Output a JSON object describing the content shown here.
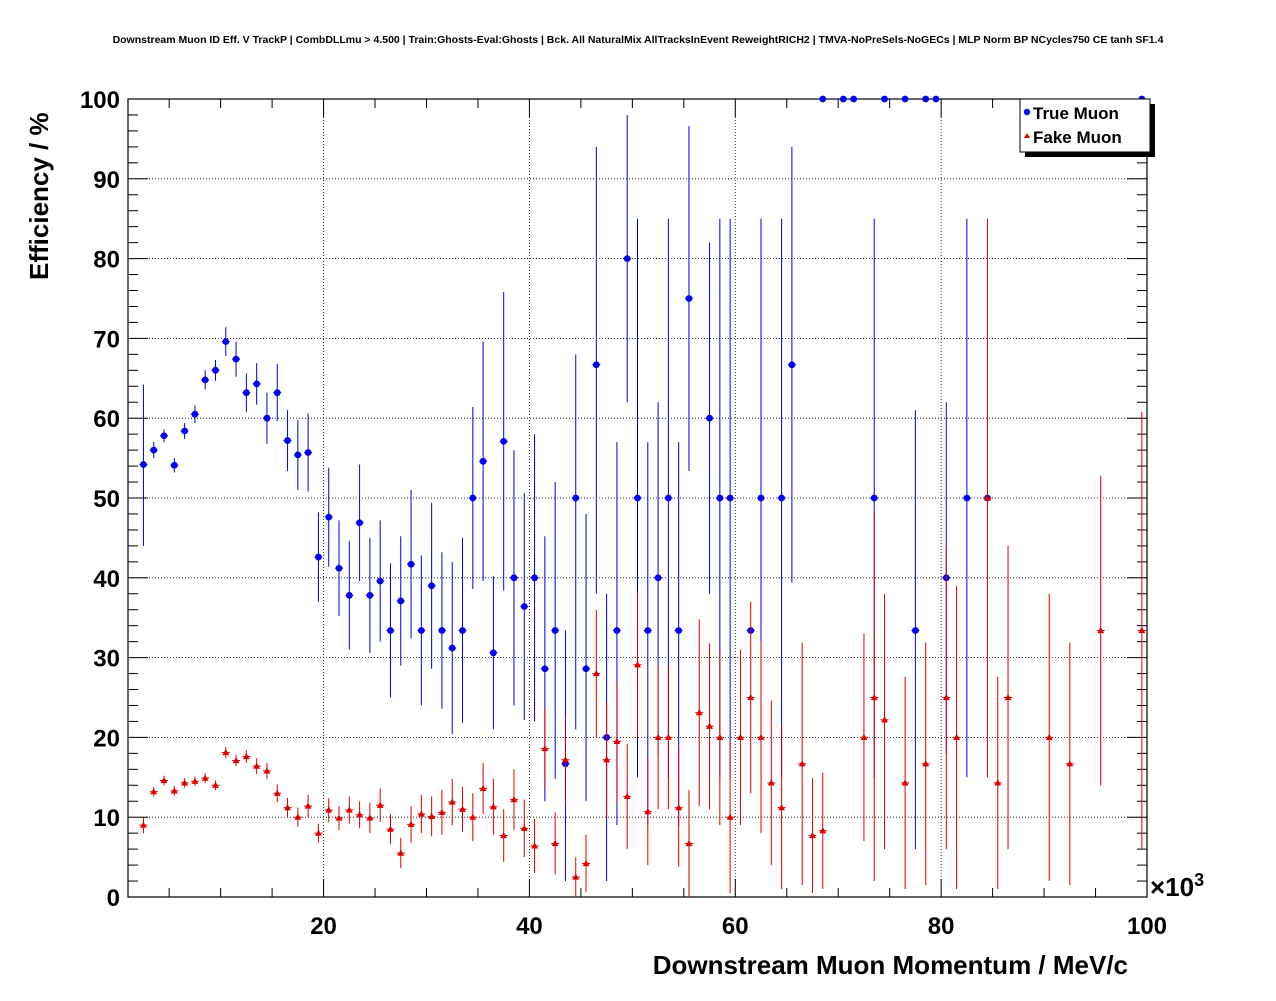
{
  "chart_data": {
    "type": "scatter",
    "title": "Downstream Muon ID Eff. V TrackP | CombDLLmu > 4.500 | Train:Ghosts-Eval:Ghosts | Bck. All NaturalMix AllTracksInEvent ReweightRICH2 | TMVA-NoPreSels-NoGECs | MLP Norm BP NCycles750 CE tanh SF1.4",
    "xlabel": "Downstream Muon Momentum / MeV/c",
    "ylabel": "Efficiency / %",
    "x_multiplier": "×10",
    "x_multiplier_exp": "3",
    "xlim": [
      1,
      100
    ],
    "ylim": [
      0,
      100
    ],
    "x_ticks": [
      20,
      40,
      60,
      80,
      100
    ],
    "y_ticks": [
      0,
      10,
      20,
      30,
      40,
      50,
      60,
      70,
      80,
      90,
      100
    ],
    "grid": true,
    "legend_position": "top-right",
    "series": [
      {
        "name": "True Muon",
        "color": "#0000ee",
        "marker": "circle",
        "points": [
          {
            "x": 2.5,
            "y": 54.2,
            "lo": 44.0,
            "hi": 64.2
          },
          {
            "x": 3.5,
            "y": 56.0,
            "lo": 55.0,
            "hi": 57.0
          },
          {
            "x": 4.5,
            "y": 57.8,
            "lo": 57.0,
            "hi": 58.6
          },
          {
            "x": 5.5,
            "y": 54.1,
            "lo": 53.2,
            "hi": 55.0
          },
          {
            "x": 6.5,
            "y": 58.4,
            "lo": 57.4,
            "hi": 59.4
          },
          {
            "x": 7.5,
            "y": 60.5,
            "lo": 59.4,
            "hi": 61.6
          },
          {
            "x": 8.5,
            "y": 64.8,
            "lo": 63.6,
            "hi": 66.0
          },
          {
            "x": 9.5,
            "y": 66.0,
            "lo": 64.7,
            "hi": 67.3
          },
          {
            "x": 10.5,
            "y": 69.6,
            "lo": 67.8,
            "hi": 71.4
          },
          {
            "x": 11.5,
            "y": 67.4,
            "lo": 65.2,
            "hi": 69.6
          },
          {
            "x": 12.5,
            "y": 63.2,
            "lo": 60.8,
            "hi": 65.6
          },
          {
            "x": 13.5,
            "y": 64.3,
            "lo": 61.7,
            "hi": 66.9
          },
          {
            "x": 14.5,
            "y": 60.0,
            "lo": 56.8,
            "hi": 63.2
          },
          {
            "x": 15.5,
            "y": 63.2,
            "lo": 59.6,
            "hi": 66.8
          },
          {
            "x": 16.5,
            "y": 57.2,
            "lo": 53.4,
            "hi": 61.0
          },
          {
            "x": 17.5,
            "y": 55.4,
            "lo": 51.0,
            "hi": 59.8
          },
          {
            "x": 18.5,
            "y": 55.7,
            "lo": 50.8,
            "hi": 60.6
          },
          {
            "x": 19.5,
            "y": 42.6,
            "lo": 37.0,
            "hi": 48.2
          },
          {
            "x": 20.5,
            "y": 47.6,
            "lo": 41.4,
            "hi": 53.8
          },
          {
            "x": 21.5,
            "y": 41.2,
            "lo": 35.2,
            "hi": 47.2
          },
          {
            "x": 22.5,
            "y": 37.8,
            "lo": 31.0,
            "hi": 44.6
          },
          {
            "x": 23.5,
            "y": 46.9,
            "lo": 39.6,
            "hi": 54.2
          },
          {
            "x": 24.5,
            "y": 37.8,
            "lo": 30.6,
            "hi": 45.0
          },
          {
            "x": 25.5,
            "y": 39.6,
            "lo": 32.0,
            "hi": 47.2
          },
          {
            "x": 26.5,
            "y": 33.4,
            "lo": 25.0,
            "hi": 41.8
          },
          {
            "x": 27.5,
            "y": 37.1,
            "lo": 29.0,
            "hi": 45.2
          },
          {
            "x": 28.5,
            "y": 41.7,
            "lo": 32.4,
            "hi": 51.0
          },
          {
            "x": 29.5,
            "y": 33.4,
            "lo": 24.0,
            "hi": 42.8
          },
          {
            "x": 30.5,
            "y": 39.0,
            "lo": 28.6,
            "hi": 49.4
          },
          {
            "x": 31.5,
            "y": 33.4,
            "lo": 23.6,
            "hi": 43.2
          },
          {
            "x": 32.5,
            "y": 31.2,
            "lo": 20.4,
            "hi": 42.0
          },
          {
            "x": 33.5,
            "y": 33.4,
            "lo": 21.8,
            "hi": 45.0
          },
          {
            "x": 34.5,
            "y": 50.0,
            "lo": 38.6,
            "hi": 61.4
          },
          {
            "x": 35.5,
            "y": 54.6,
            "lo": 39.6,
            "hi": 69.6
          },
          {
            "x": 36.5,
            "y": 30.6,
            "lo": 21.0,
            "hi": 40.2
          },
          {
            "x": 37.5,
            "y": 57.1,
            "lo": 38.4,
            "hi": 75.8
          },
          {
            "x": 38.5,
            "y": 40.0,
            "lo": 24.0,
            "hi": 56.0
          },
          {
            "x": 39.5,
            "y": 36.4,
            "lo": 22.2,
            "hi": 50.6
          },
          {
            "x": 40.5,
            "y": 40.0,
            "lo": 22.0,
            "hi": 58.0
          },
          {
            "x": 41.5,
            "y": 28.6,
            "lo": 12.0,
            "hi": 45.2
          },
          {
            "x": 42.5,
            "y": 33.4,
            "lo": 14.8,
            "hi": 52.0
          },
          {
            "x": 43.5,
            "y": 16.7,
            "lo": 2.0,
            "hi": 33.4
          },
          {
            "x": 44.5,
            "y": 50.0,
            "lo": 21.0,
            "hi": 68.0
          },
          {
            "x": 45.5,
            "y": 28.6,
            "lo": 12.0,
            "hi": 48.0
          },
          {
            "x": 46.5,
            "y": 66.7,
            "lo": 38.0,
            "hi": 94.0
          },
          {
            "x": 47.5,
            "y": 20.0,
            "lo": 2.0,
            "hi": 38.0
          },
          {
            "x": 48.5,
            "y": 33.4,
            "lo": 9.0,
            "hi": 57.0
          },
          {
            "x": 49.5,
            "y": 80.0,
            "lo": 62.0,
            "hi": 98.0
          },
          {
            "x": 50.5,
            "y": 50.0,
            "lo": 15.0,
            "hi": 85.0
          },
          {
            "x": 51.5,
            "y": 33.4,
            "lo": 9.0,
            "hi": 57.0
          },
          {
            "x": 52.5,
            "y": 40.0,
            "lo": 18.0,
            "hi": 62.0
          },
          {
            "x": 53.5,
            "y": 50.0,
            "lo": 15.0,
            "hi": 85.0
          },
          {
            "x": 54.5,
            "y": 33.4,
            "lo": 9.0,
            "hi": 57.0
          },
          {
            "x": 55.5,
            "y": 75.0,
            "lo": 53.4,
            "hi": 96.6
          },
          {
            "x": 57.5,
            "y": 60.0,
            "lo": 38.0,
            "hi": 82.0
          },
          {
            "x": 58.5,
            "y": 50.0,
            "lo": 15.0,
            "hi": 85.0
          },
          {
            "x": 59.5,
            "y": 50.0,
            "lo": 15.0,
            "hi": 85.0
          },
          {
            "x": 61.5,
            "y": 33.4,
            "lo": 33.4,
            "hi": 33.4
          },
          {
            "x": 62.5,
            "y": 50.0,
            "lo": 15.0,
            "hi": 85.0
          },
          {
            "x": 64.5,
            "y": 50.0,
            "lo": 15.0,
            "hi": 85.0
          },
          {
            "x": 65.5,
            "y": 66.7,
            "lo": 39.4,
            "hi": 94.0
          },
          {
            "x": 68.5,
            "y": 100.0,
            "lo": 100.0,
            "hi": 100.0
          },
          {
            "x": 70.5,
            "y": 100.0,
            "lo": 100.0,
            "hi": 100.0
          },
          {
            "x": 71.5,
            "y": 100.0,
            "lo": 100.0,
            "hi": 100.0
          },
          {
            "x": 73.5,
            "y": 50.0,
            "lo": 15.0,
            "hi": 85.0
          },
          {
            "x": 74.5,
            "y": 100.0,
            "lo": 100.0,
            "hi": 100.0
          },
          {
            "x": 76.5,
            "y": 100.0,
            "lo": 100.0,
            "hi": 100.0
          },
          {
            "x": 77.5,
            "y": 33.4,
            "lo": 6.0,
            "hi": 61.0
          },
          {
            "x": 78.5,
            "y": 100.0,
            "lo": 100.0,
            "hi": 100.0
          },
          {
            "x": 79.5,
            "y": 100.0,
            "lo": 100.0,
            "hi": 100.0
          },
          {
            "x": 80.5,
            "y": 40.0,
            "lo": 18.0,
            "hi": 62.0
          },
          {
            "x": 82.5,
            "y": 50.0,
            "lo": 15.0,
            "hi": 85.0
          },
          {
            "x": 84.5,
            "y": 50.0,
            "lo": 50.0,
            "hi": 50.0
          },
          {
            "x": 99.5,
            "y": 100.0,
            "lo": 100.0,
            "hi": 100.0
          }
        ]
      },
      {
        "name": "Fake Muon",
        "color": "#dd0000",
        "marker": "triangle",
        "points": [
          {
            "x": 2.5,
            "y": 9.0,
            "lo": 8.0,
            "hi": 10.0
          },
          {
            "x": 3.5,
            "y": 13.2,
            "lo": 12.6,
            "hi": 13.8
          },
          {
            "x": 4.5,
            "y": 14.6,
            "lo": 14.0,
            "hi": 15.2
          },
          {
            "x": 5.5,
            "y": 13.3,
            "lo": 12.7,
            "hi": 13.9
          },
          {
            "x": 6.5,
            "y": 14.3,
            "lo": 13.7,
            "hi": 14.9
          },
          {
            "x": 7.5,
            "y": 14.5,
            "lo": 13.9,
            "hi": 15.1
          },
          {
            "x": 8.5,
            "y": 14.9,
            "lo": 14.3,
            "hi": 15.5
          },
          {
            "x": 9.5,
            "y": 14.0,
            "lo": 13.4,
            "hi": 14.6
          },
          {
            "x": 10.5,
            "y": 18.1,
            "lo": 17.4,
            "hi": 18.8
          },
          {
            "x": 11.5,
            "y": 17.1,
            "lo": 16.4,
            "hi": 17.8
          },
          {
            "x": 12.5,
            "y": 17.6,
            "lo": 16.8,
            "hi": 18.4
          },
          {
            "x": 13.5,
            "y": 16.4,
            "lo": 15.4,
            "hi": 17.4
          },
          {
            "x": 14.5,
            "y": 15.8,
            "lo": 14.8,
            "hi": 16.8
          },
          {
            "x": 15.5,
            "y": 13.0,
            "lo": 11.9,
            "hi": 14.1
          },
          {
            "x": 16.5,
            "y": 11.2,
            "lo": 10.0,
            "hi": 12.4
          },
          {
            "x": 17.5,
            "y": 10.0,
            "lo": 8.8,
            "hi": 11.2
          },
          {
            "x": 18.5,
            "y": 11.4,
            "lo": 10.0,
            "hi": 12.8
          },
          {
            "x": 19.5,
            "y": 8.0,
            "lo": 6.8,
            "hi": 9.2
          },
          {
            "x": 20.5,
            "y": 10.9,
            "lo": 9.4,
            "hi": 12.4
          },
          {
            "x": 21.5,
            "y": 9.9,
            "lo": 8.4,
            "hi": 11.4
          },
          {
            "x": 22.5,
            "y": 10.9,
            "lo": 9.2,
            "hi": 12.6
          },
          {
            "x": 23.5,
            "y": 10.3,
            "lo": 8.6,
            "hi": 12.0
          },
          {
            "x": 24.5,
            "y": 9.9,
            "lo": 8.0,
            "hi": 11.8
          },
          {
            "x": 25.5,
            "y": 11.5,
            "lo": 9.4,
            "hi": 13.6
          },
          {
            "x": 26.5,
            "y": 8.5,
            "lo": 6.6,
            "hi": 10.4
          },
          {
            "x": 27.5,
            "y": 5.5,
            "lo": 3.6,
            "hi": 7.4
          },
          {
            "x": 28.5,
            "y": 9.1,
            "lo": 6.8,
            "hi": 11.4
          },
          {
            "x": 29.5,
            "y": 10.4,
            "lo": 8.0,
            "hi": 12.8
          },
          {
            "x": 30.5,
            "y": 10.1,
            "lo": 7.6,
            "hi": 12.6
          },
          {
            "x": 31.5,
            "y": 10.6,
            "lo": 7.8,
            "hi": 13.4
          },
          {
            "x": 32.5,
            "y": 11.9,
            "lo": 9.0,
            "hi": 14.8
          },
          {
            "x": 33.5,
            "y": 11.0,
            "lo": 8.2,
            "hi": 13.8
          },
          {
            "x": 34.5,
            "y": 10.0,
            "lo": 7.0,
            "hi": 13.0
          },
          {
            "x": 35.5,
            "y": 13.6,
            "lo": 10.4,
            "hi": 16.8
          },
          {
            "x": 36.5,
            "y": 11.3,
            "lo": 7.8,
            "hi": 14.8
          },
          {
            "x": 37.5,
            "y": 7.7,
            "lo": 4.4,
            "hi": 11.0
          },
          {
            "x": 38.5,
            "y": 12.2,
            "lo": 8.4,
            "hi": 16.0
          },
          {
            "x": 39.5,
            "y": 8.6,
            "lo": 5.0,
            "hi": 12.2
          },
          {
            "x": 40.5,
            "y": 6.4,
            "lo": 3.0,
            "hi": 9.8
          },
          {
            "x": 41.5,
            "y": 18.6,
            "lo": 13.6,
            "hi": 23.6
          },
          {
            "x": 42.5,
            "y": 6.7,
            "lo": 2.8,
            "hi": 10.6
          },
          {
            "x": 43.5,
            "y": 17.2,
            "lo": 11.8,
            "hi": 22.6
          },
          {
            "x": 44.5,
            "y": 2.5,
            "lo": 0.0,
            "hi": 5.0
          },
          {
            "x": 45.5,
            "y": 4.2,
            "lo": 0.6,
            "hi": 7.8
          },
          {
            "x": 46.5,
            "y": 28.0,
            "lo": 20.0,
            "hi": 36.0
          },
          {
            "x": 47.5,
            "y": 17.2,
            "lo": 10.0,
            "hi": 24.4
          },
          {
            "x": 48.5,
            "y": 19.5,
            "lo": 12.0,
            "hi": 27.0
          },
          {
            "x": 49.5,
            "y": 12.6,
            "lo": 6.0,
            "hi": 19.2
          },
          {
            "x": 50.5,
            "y": 29.1,
            "lo": 20.0,
            "hi": 38.2
          },
          {
            "x": 51.5,
            "y": 10.7,
            "lo": 4.0,
            "hi": 17.4
          },
          {
            "x": 52.5,
            "y": 20.0,
            "lo": 11.0,
            "hi": 29.0
          },
          {
            "x": 53.5,
            "y": 20.0,
            "lo": 11.0,
            "hi": 29.0
          },
          {
            "x": 54.5,
            "y": 11.2,
            "lo": 3.8,
            "hi": 18.6
          },
          {
            "x": 55.5,
            "y": 6.7,
            "lo": 0.0,
            "hi": 13.4
          },
          {
            "x": 56.5,
            "y": 23.1,
            "lo": 11.4,
            "hi": 34.8
          },
          {
            "x": 57.5,
            "y": 21.4,
            "lo": 11.0,
            "hi": 31.8
          },
          {
            "x": 58.5,
            "y": 20.0,
            "lo": 9.0,
            "hi": 31.0
          },
          {
            "x": 59.5,
            "y": 10.0,
            "lo": 0.5,
            "hi": 19.5
          },
          {
            "x": 60.5,
            "y": 20.0,
            "lo": 9.0,
            "hi": 31.0
          },
          {
            "x": 61.5,
            "y": 25.0,
            "lo": 13.0,
            "hi": 37.0
          },
          {
            "x": 62.5,
            "y": 20.0,
            "lo": 8.0,
            "hi": 32.0
          },
          {
            "x": 63.5,
            "y": 14.3,
            "lo": 4.0,
            "hi": 24.6
          },
          {
            "x": 64.5,
            "y": 11.2,
            "lo": 1.0,
            "hi": 21.4
          },
          {
            "x": 66.5,
            "y": 16.7,
            "lo": 1.5,
            "hi": 31.9
          },
          {
            "x": 67.5,
            "y": 7.7,
            "lo": 0.5,
            "hi": 14.9
          },
          {
            "x": 68.5,
            "y": 8.3,
            "lo": 1.0,
            "hi": 15.6
          },
          {
            "x": 72.5,
            "y": 20.0,
            "lo": 7.0,
            "hi": 33.0
          },
          {
            "x": 73.5,
            "y": 25.0,
            "lo": 2.0,
            "hi": 48.0
          },
          {
            "x": 74.5,
            "y": 22.2,
            "lo": 6.0,
            "hi": 38.0
          },
          {
            "x": 76.5,
            "y": 14.3,
            "lo": 1.0,
            "hi": 27.6
          },
          {
            "x": 78.5,
            "y": 16.7,
            "lo": 1.5,
            "hi": 31.9
          },
          {
            "x": 80.5,
            "y": 25.0,
            "lo": 6.0,
            "hi": 44.0
          },
          {
            "x": 81.5,
            "y": 20.0,
            "lo": 1.0,
            "hi": 39.0
          },
          {
            "x": 84.5,
            "y": 50.0,
            "lo": 15.0,
            "hi": 85.0
          },
          {
            "x": 85.5,
            "y": 14.3,
            "lo": 1.0,
            "hi": 27.6
          },
          {
            "x": 86.5,
            "y": 25.0,
            "lo": 6.0,
            "hi": 44.0
          },
          {
            "x": 90.5,
            "y": 20.0,
            "lo": 2.0,
            "hi": 38.0
          },
          {
            "x": 92.5,
            "y": 16.7,
            "lo": 1.5,
            "hi": 31.9
          },
          {
            "x": 95.5,
            "y": 33.4,
            "lo": 14.0,
            "hi": 52.8
          },
          {
            "x": 99.5,
            "y": 33.4,
            "lo": 6.0,
            "hi": 60.8
          }
        ]
      }
    ]
  }
}
